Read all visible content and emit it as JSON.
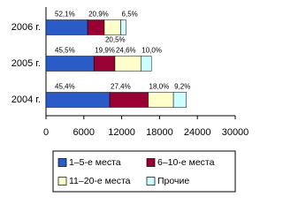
{
  "chart_data": {
    "type": "stacked-barh",
    "categories": [
      "2006 г.",
      "2005 г.",
      "2004 г."
    ],
    "series": [
      {
        "name": "1–5-е места",
        "color": "#2a5bc6",
        "values": [
          6600,
          7600,
          10100
        ],
        "value_labels": [
          "52,1%",
          "45,5%",
          "45,4%"
        ]
      },
      {
        "name": "6–10-е места",
        "color": "#990033",
        "values": [
          2650,
          3330,
          6100
        ],
        "value_labels": [
          "20,9%",
          "19,9%",
          "27,4%"
        ]
      },
      {
        "name": "11–20-е места",
        "color": "#ffffcc",
        "values": [
          2600,
          4110,
          4000
        ],
        "value_labels": [
          "20,5%",
          "24,6%",
          "18,0%"
        ]
      },
      {
        "name": "Прочие",
        "color": "#ccffff",
        "values": [
          830,
          1670,
          2050
        ],
        "value_labels": [
          "6,5%",
          "10,0%",
          "9,2%"
        ]
      }
    ],
    "xlim": [
      0,
      30000
    ],
    "xticks": [
      0,
      6000,
      12000,
      18000,
      24000,
      30000
    ],
    "legend": "bottom"
  }
}
